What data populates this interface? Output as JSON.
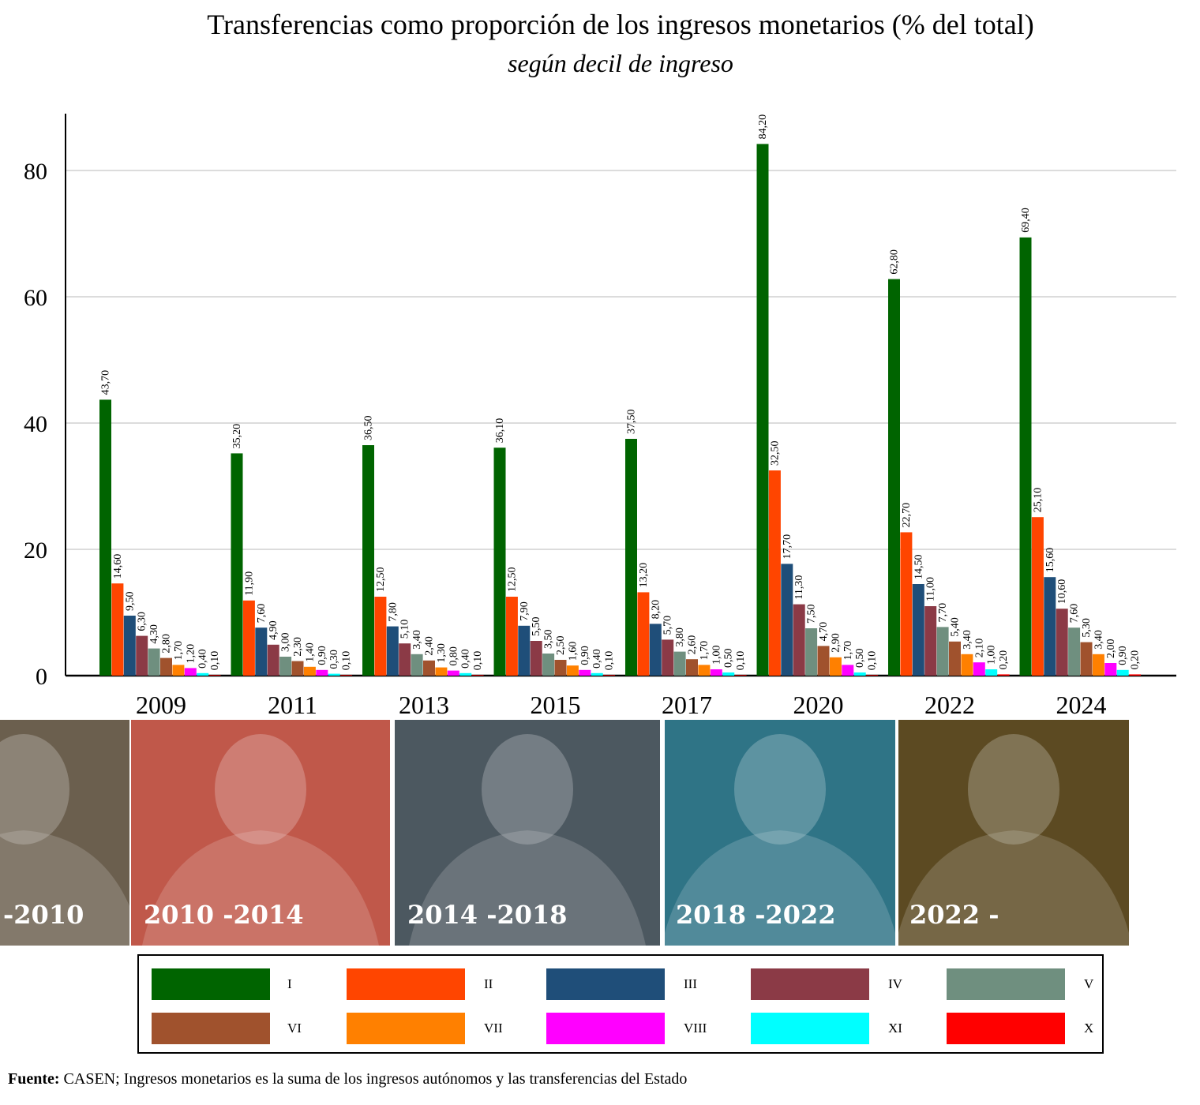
{
  "chart_data": {
    "type": "bar",
    "title": "Transferencias como proporción de los ingresos monetarios (% del total)",
    "subtitle": "según decil de ingreso",
    "categories": [
      "2009",
      "2011",
      "2013",
      "2015",
      "2017",
      "2020",
      "2022",
      "2024"
    ],
    "ylim": [
      0,
      89
    ],
    "yticks": [
      0,
      20,
      40,
      60,
      80
    ],
    "grid": true,
    "legend_position": "bottom",
    "series": [
      {
        "name": "I",
        "color": "#006400",
        "values": [
          43.7,
          35.2,
          36.5,
          36.1,
          37.5,
          84.2,
          62.8,
          69.4
        ],
        "labels": [
          "43,70",
          "35,20",
          "36,50",
          "36,10",
          "37,50",
          "84,20",
          "62,80",
          "69,40"
        ]
      },
      {
        "name": "II",
        "color": "#ff4500",
        "values": [
          14.6,
          11.9,
          12.5,
          12.5,
          13.2,
          32.5,
          22.7,
          25.1
        ],
        "labels": [
          "14,60",
          "11,90",
          "12,50",
          "12,50",
          "13,20",
          "32,50",
          "22,70",
          "25,10"
        ]
      },
      {
        "name": "III",
        "color": "#1f4e79",
        "values": [
          9.5,
          7.6,
          7.8,
          7.9,
          8.2,
          17.7,
          14.5,
          15.6
        ],
        "labels": [
          "9,50",
          "7,60",
          "7,80",
          "7,90",
          "8,20",
          "17,70",
          "14,50",
          "15,60"
        ]
      },
      {
        "name": "IV",
        "color": "#8b3a46",
        "values": [
          6.3,
          4.9,
          5.1,
          5.5,
          5.7,
          11.3,
          11.0,
          10.6
        ],
        "labels": [
          "6,30",
          "4,90",
          "5,10",
          "5,50",
          "5,70",
          "11,30",
          "11,00",
          "10,60"
        ]
      },
      {
        "name": "V",
        "color": "#6f8f7f",
        "values": [
          4.3,
          3.0,
          3.4,
          3.5,
          3.8,
          7.5,
          7.7,
          7.6
        ],
        "labels": [
          "4,30",
          "3,00",
          "3,40",
          "3,50",
          "3,80",
          "7,50",
          "7,70",
          "7,60"
        ]
      },
      {
        "name": "VI",
        "color": "#a0522d",
        "values": [
          2.8,
          2.3,
          2.4,
          2.5,
          2.6,
          4.7,
          5.4,
          5.3
        ],
        "labels": [
          "2,80",
          "2,30",
          "2,40",
          "2,50",
          "2,60",
          "4,70",
          "5,40",
          "5,30"
        ]
      },
      {
        "name": "VII",
        "color": "#ff8000",
        "values": [
          1.7,
          1.4,
          1.3,
          1.6,
          1.7,
          2.9,
          3.4,
          3.4
        ],
        "labels": [
          "1,70",
          "1,40",
          "1,30",
          "1,60",
          "1,70",
          "2,90",
          "3,40",
          "3,40"
        ]
      },
      {
        "name": "VIII",
        "color": "#ff00ff",
        "values": [
          1.2,
          0.9,
          0.8,
          0.9,
          1.0,
          1.7,
          2.1,
          2.0
        ],
        "labels": [
          "1,20",
          "0,90",
          "0,80",
          "0,90",
          "1,00",
          "1,70",
          "2,10",
          "2,00"
        ]
      },
      {
        "name": "XI",
        "color": "#00ffff",
        "values": [
          0.4,
          0.3,
          0.4,
          0.4,
          0.5,
          0.5,
          1.0,
          0.9
        ],
        "labels": [
          "0,40",
          "0,30",
          "0,40",
          "0,40",
          "0,50",
          "0,50",
          "1,00",
          "0,90"
        ]
      },
      {
        "name": "X",
        "color": "#ff0000",
        "values": [
          0.1,
          0.1,
          0.1,
          0.1,
          0.1,
          0.1,
          0.2,
          0.2
        ],
        "labels": [
          "0,10",
          "0,10",
          "0,10",
          "0,10",
          "0,10",
          "0,10",
          "0,20",
          "0,20"
        ]
      }
    ]
  },
  "photos": [
    {
      "term": "-2010",
      "tint": "#6b5f4e"
    },
    {
      "term": "2010 -2014",
      "tint": "#c0584a"
    },
    {
      "term": "2014 -2018",
      "tint": "#4d5860"
    },
    {
      "term": "2018 -2022",
      "tint": "#2f7486"
    },
    {
      "term": "2022 -",
      "tint": "#5c4a22"
    }
  ],
  "footnote": {
    "label": "Fuente:",
    "text": " CASEN; Ingresos monetarios es la suma de los ingresos autónomos y las transferencias del Estado"
  }
}
